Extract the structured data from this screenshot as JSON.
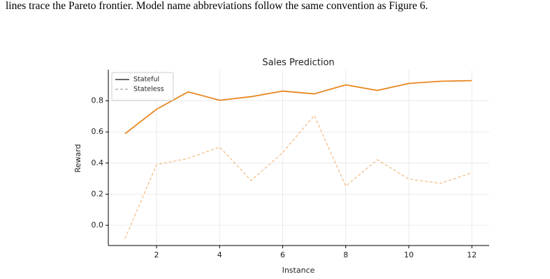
{
  "paragraph": "lines trace the Pareto frontier. Model name abbreviations follow the same convention as Figure 6.",
  "chart_data": {
    "type": "line",
    "title": "Sales Prediction",
    "xlabel": "Instance",
    "ylabel": "Reward",
    "x": [
      1,
      2,
      3,
      4,
      5,
      6,
      7,
      8,
      9,
      10,
      11,
      12
    ],
    "series": [
      {
        "name": "Stateful",
        "color": "#e8861e",
        "dash": false,
        "values": [
          0.589,
          0.746,
          0.858,
          0.804,
          0.827,
          0.863,
          0.845,
          0.903,
          0.867,
          0.912,
          0.926,
          0.93
        ]
      },
      {
        "name": "Stateless",
        "color": "#f0ac66",
        "dash": true,
        "values": [
          -0.085,
          0.39,
          0.43,
          0.503,
          0.288,
          0.467,
          0.706,
          0.252,
          0.422,
          0.297,
          0.27,
          0.337
        ]
      }
    ],
    "xlim": [
      0.47,
      12.55
    ],
    "ylim": [
      -0.13,
      1.0
    ],
    "xticks": [
      2,
      4,
      6,
      8,
      10,
      12
    ],
    "yticks": [
      {
        "value": 0,
        "label": "0.0"
      },
      0.2,
      0.4,
      0.6,
      0.8
    ],
    "grid": true,
    "legend": "upper-left"
  }
}
